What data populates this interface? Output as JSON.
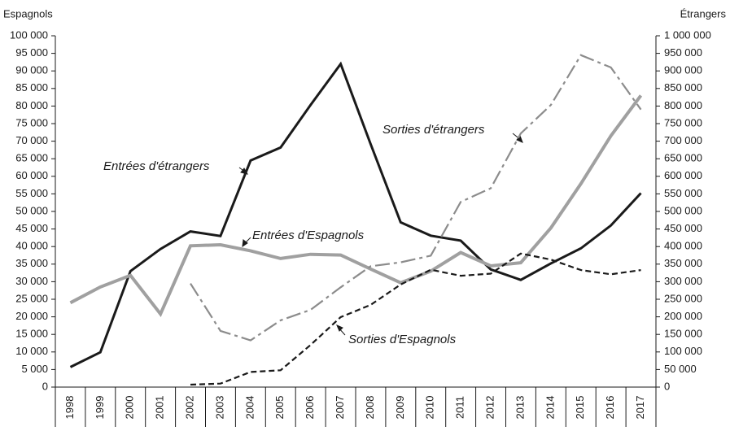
{
  "chart_data": {
    "type": "line",
    "y_label": "Espagnols",
    "y2_label": "Étrangers",
    "categories": [
      "1998",
      "1999",
      "2000",
      "2001",
      "2002",
      "2003",
      "2004",
      "2005",
      "2006",
      "2007",
      "2008",
      "2009",
      "2010",
      "2011",
      "2012",
      "2013",
      "2014",
      "2015",
      "2016",
      "2017"
    ],
    "ylim": [
      0,
      100000
    ],
    "yticks": [
      0,
      {
        "value": 5000,
        "label": "5 000"
      },
      {
        "value": 10000,
        "label": "10 000"
      },
      {
        "value": 15000,
        "label": "15 000"
      },
      {
        "value": 20000,
        "label": "20 000"
      },
      {
        "value": 25000,
        "label": "25 000"
      },
      {
        "value": 30000,
        "label": "30 000"
      },
      {
        "value": 35000,
        "label": "35 000"
      },
      {
        "value": 40000,
        "label": "40 000"
      },
      {
        "value": 45000,
        "label": "45 000"
      },
      {
        "value": 50000,
        "label": "50 000"
      },
      {
        "value": 55000,
        "label": "55 000"
      },
      {
        "value": 60000,
        "label": "60 000"
      },
      {
        "value": 65000,
        "label": "65 000"
      },
      {
        "value": 70000,
        "label": "70 000"
      },
      {
        "value": 75000,
        "label": "75 000"
      },
      {
        "value": 80000,
        "label": "80 000"
      },
      {
        "value": 85000,
        "label": "85 000"
      },
      {
        "value": 90000,
        "label": "90 000"
      },
      {
        "value": 95000,
        "label": "95 000"
      },
      {
        "value": 100000,
        "label": "100 000"
      }
    ],
    "y2lim": [
      0,
      1000000
    ],
    "y2ticks": [
      0,
      {
        "value": 50000,
        "label": "50 000"
      },
      {
        "value": 100000,
        "label": "100 000"
      },
      {
        "value": 150000,
        "label": "150 000"
      },
      {
        "value": 200000,
        "label": "200 000"
      },
      {
        "value": 250000,
        "label": "250 000"
      },
      {
        "value": 300000,
        "label": "300 000"
      },
      {
        "value": 350000,
        "label": "350 000"
      },
      {
        "value": 400000,
        "label": "400 000"
      },
      {
        "value": 450000,
        "label": "450 000"
      },
      {
        "value": 500000,
        "label": "500 000"
      },
      {
        "value": 550000,
        "label": "550 000"
      },
      {
        "value": 600000,
        "label": "600 000"
      },
      {
        "value": 650000,
        "label": "650 000"
      },
      {
        "value": 700000,
        "label": "700 000"
      },
      {
        "value": 750000,
        "label": "750 000"
      },
      {
        "value": 800000,
        "label": "800 000"
      },
      {
        "value": 850000,
        "label": "850 000"
      },
      {
        "value": 900000,
        "label": "900 000"
      },
      {
        "value": 950000,
        "label": "950 000"
      },
      {
        "value": 1000000,
        "label": "1 000 000"
      }
    ],
    "series": [
      {
        "name": "Entrées d'étrangers",
        "color": "#1a1a1a",
        "dashed": false,
        "axis": "y2",
        "values": [
          57000,
          99000,
          330000,
          393000,
          443000,
          430000,
          645000,
          682000,
          803000,
          920000,
          692000,
          469000,
          431000,
          417000,
          335000,
          305000,
          352000,
          395000,
          460000,
          552000
        ]
      },
      {
        "name": "Entrées d'Espagnols",
        "color": "#a0a0a0",
        "dashed": false,
        "values": [
          24000,
          28500,
          31800,
          20800,
          40200,
          40500,
          38800,
          36600,
          37800,
          37600,
          33600,
          29700,
          33000,
          38300,
          34500,
          35400,
          45300,
          57900,
          71500,
          83000
        ]
      },
      {
        "name": "Sorties d'étrangers",
        "color": "#8c8c8c",
        "dashed": true,
        "axis": "y2",
        "values": [
          null,
          null,
          null,
          null,
          295000,
          160000,
          133000,
          190000,
          220000,
          284000,
          344000,
          355000,
          374000,
          527000,
          566000,
          722000,
          803000,
          945000,
          910000,
          790000
        ]
      },
      {
        "name": "Sorties d'Espagnols",
        "color": "#1a1a1a",
        "dashed": true,
        "values": [
          null,
          null,
          null,
          null,
          700,
          1000,
          4300,
          4800,
          12000,
          19900,
          23400,
          29200,
          33400,
          31700,
          32300,
          38000,
          36300,
          33300,
          32100,
          33300
        ]
      }
    ]
  }
}
